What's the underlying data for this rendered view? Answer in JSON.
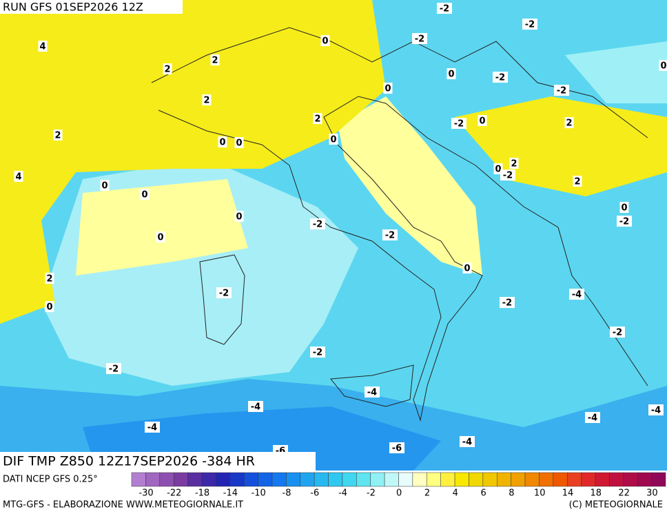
{
  "header": {
    "run": "RUN GFS 01SEP2026 12Z",
    "field": "DIF TMP Z850 12Z17SEP2026 -384 HR",
    "source": "DATI NCEP GFS 0.25°"
  },
  "map": {
    "labels": [
      -2,
      -2,
      0,
      -2,
      4,
      2,
      2,
      0,
      -2,
      0,
      0,
      -2,
      2,
      2,
      2,
      -2,
      0,
      2,
      0,
      0,
      0,
      0,
      2,
      -2,
      4,
      0,
      0,
      2,
      0,
      -2,
      0,
      -2,
      -2,
      0,
      0,
      2,
      -2,
      -4,
      -2,
      0,
      -2,
      -2,
      -2,
      -4,
      -4,
      -4,
      -4,
      -4,
      -4,
      -6,
      -6
    ]
  },
  "colorbar": {
    "labels": [
      -30,
      -22,
      -18,
      -14,
      -10,
      -8,
      -6,
      -4,
      -2,
      0,
      2,
      4,
      6,
      8,
      10,
      14,
      18,
      22,
      30
    ],
    "colors": [
      "#b27fd0",
      "#a066c0",
      "#8e50b0",
      "#7a3ca0",
      "#5a2ea0",
      "#3c28a8",
      "#2424b4",
      "#1838c8",
      "#1450dc",
      "#1464e8",
      "#1478f0",
      "#1890f0",
      "#20a4f0",
      "#28b8f0",
      "#30c8f0",
      "#40d8f0",
      "#60e4f0",
      "#90f0f4",
      "#c0f8f8",
      "#e8fcfc",
      "#ffffc0",
      "#ffff80",
      "#fff040",
      "#f8e800",
      "#f0d800",
      "#f0c800",
      "#f0b400",
      "#f0a000",
      "#f08800",
      "#f07000",
      "#f05800",
      "#e84020",
      "#e02828",
      "#d01830",
      "#c01040",
      "#b00c48",
      "#a00850",
      "#900858"
    ]
  },
  "footer": {
    "left": "MTG-GFS - ELABORAZIONE WWW.METEOGIORNALE.IT",
    "right": "(C) METEOGIORNALE"
  }
}
